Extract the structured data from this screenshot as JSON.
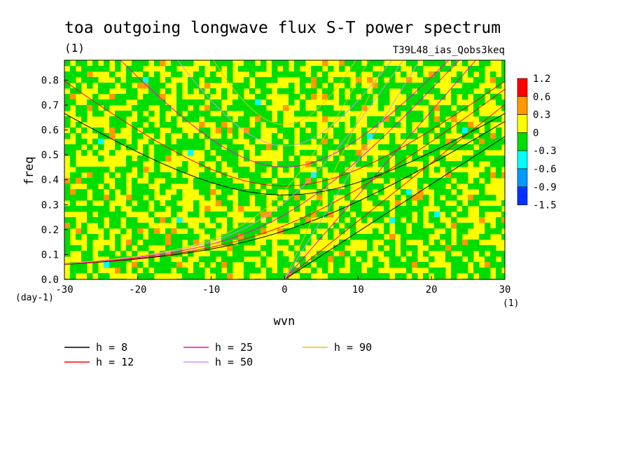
{
  "chart_data": {
    "type": "heatmap",
    "title": "toa outgoing longwave flux S-T power spectrum",
    "subtitle_left": "(1)",
    "subtitle_right": "T39L48_ias_Qobs3keq",
    "xlabel": "wvn",
    "ylabel": "freq",
    "x_unit": "(1)",
    "y_unit": "(day-1)",
    "xlim": [
      -30,
      30
    ],
    "ylim": [
      0,
      0.88
    ],
    "x_ticks": [
      -30,
      -20,
      -10,
      0,
      10,
      20,
      30
    ],
    "x_tick_labels": [
      "-30",
      "-20",
      "-10",
      "0",
      "10",
      "20",
      "30"
    ],
    "y_ticks": [
      0.0,
      0.1,
      0.2,
      0.3,
      0.4,
      0.5,
      0.6,
      0.7,
      0.8
    ],
    "y_tick_labels": [
      "0.0",
      "0.1",
      "0.2",
      "0.3",
      "0.4",
      "0.5",
      "0.6",
      "0.7",
      "0.8"
    ],
    "colorbar": {
      "levels": [
        "1.2",
        "0.6",
        "0.3",
        "0",
        "-0.3",
        "-0.6",
        "-0.9",
        "-1.5"
      ],
      "colors": [
        "#ff0000",
        "#ff9900",
        "#ffff00",
        "#00dd00",
        "#00ffff",
        "#0099ff",
        "#0033ff"
      ]
    },
    "dispersion_curves": [
      {
        "label": "h =  8",
        "h": 8,
        "color": "#000000"
      },
      {
        "label": "h = 12",
        "h": 12,
        "color": "#ff0000"
      },
      {
        "label": "h = 25",
        "h": 25,
        "color": "#ff00cc"
      },
      {
        "label": "h = 50",
        "h": 50,
        "color": "#cc99ff"
      },
      {
        "label": "h = 90",
        "h": 90,
        "color": "#e6c800"
      }
    ]
  }
}
